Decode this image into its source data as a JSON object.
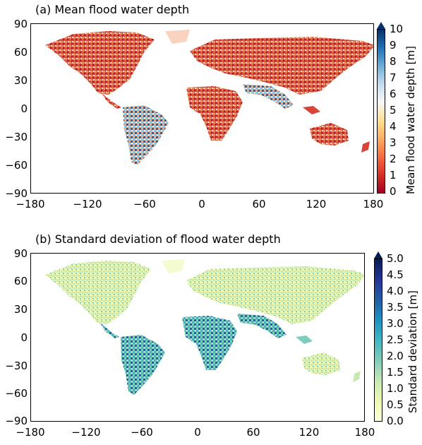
{
  "panel_a": {
    "title": "(a) Mean flood water depth",
    "colorbar_label": "Mean flood water depth [m]",
    "colorbar_ticks": [
      "0",
      "1",
      "2",
      "3",
      "4",
      "5",
      "6",
      "7",
      "8",
      "9",
      "10"
    ],
    "colormap": [
      "#a50026",
      "#d73027",
      "#f46d43",
      "#fdae61",
      "#fee090",
      "#f7f7f7",
      "#c6dbef",
      "#6baed6",
      "#2171b5",
      "#08306b"
    ],
    "extend": "max"
  },
  "panel_b": {
    "title": "(b) Standard deviation of flood water depth",
    "colorbar_label": "Standard deviation [m]",
    "colorbar_ticks": [
      "0.0",
      "0.5",
      "1.0",
      "1.5",
      "2.0",
      "2.5",
      "3.0",
      "3.5",
      "4.0",
      "4.5",
      "5.0"
    ],
    "colormap": [
      "#ffffd9",
      "#edf8b1",
      "#c7e9b4",
      "#7fcdbb",
      "#41b6c4",
      "#1d91c0",
      "#225ea8",
      "#253494",
      "#081d58"
    ],
    "extend": "max"
  },
  "axes": {
    "x_ticks": [
      "−180",
      "−120",
      "−60",
      "0",
      "60",
      "120",
      "180"
    ],
    "y_ticks": [
      "90",
      "60",
      "30",
      "0",
      "−30",
      "−60",
      "−90"
    ]
  }
}
